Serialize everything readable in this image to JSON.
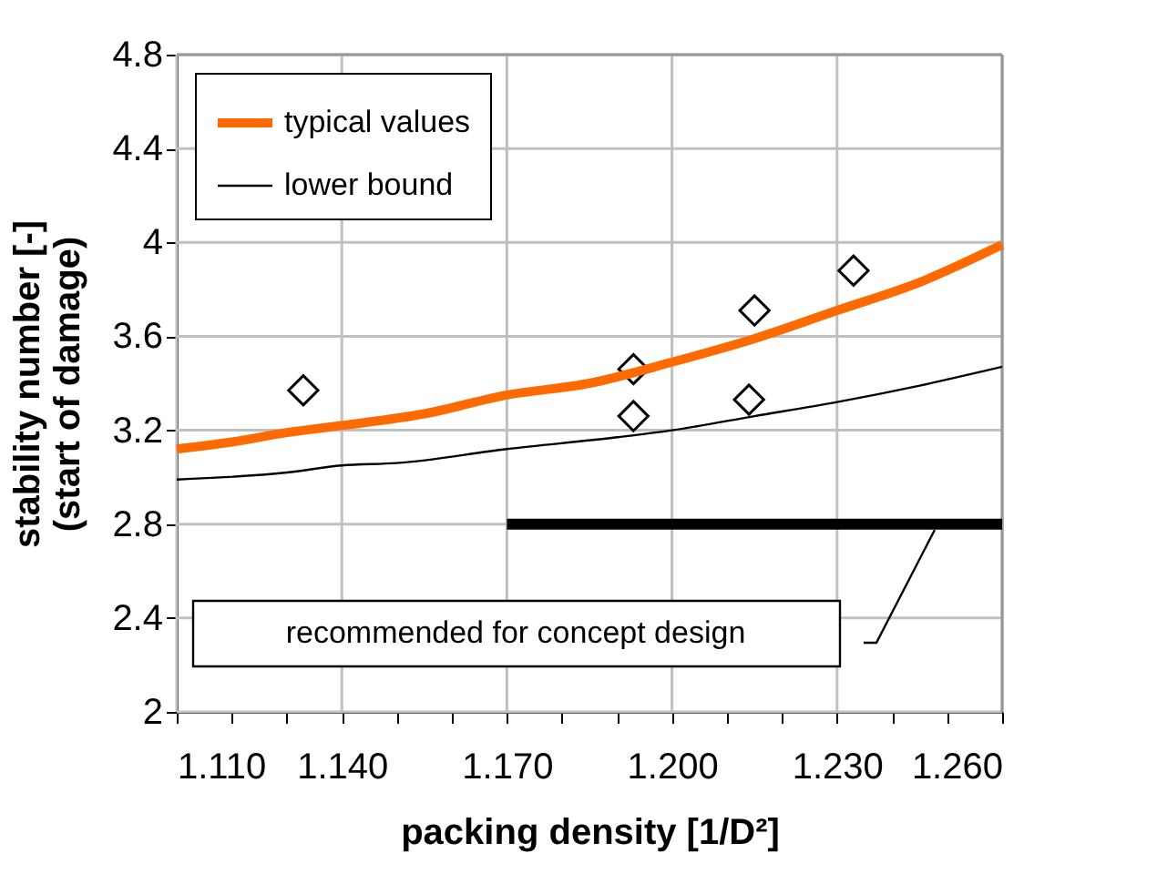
{
  "chart_data": {
    "type": "line",
    "xlabel": "packing density [1/D²]",
    "ylabel": "stability number [-]\n(start of damage)",
    "series": [
      {
        "type": "scatter",
        "color": "#000000",
        "marker": "diamond",
        "x": [
          1.133,
          1.193,
          1.193,
          1.214,
          1.215,
          1.233
        ],
        "values": [
          3.37,
          3.46,
          3.26,
          3.33,
          3.71,
          3.88
        ]
      },
      {
        "name": "typical values",
        "color": "#ff6a00",
        "x": [
          1.11,
          1.12,
          1.13,
          1.14,
          1.155,
          1.17,
          1.185,
          1.2,
          1.215,
          1.23,
          1.245,
          1.26
        ],
        "values": [
          3.12,
          3.15,
          3.19,
          3.22,
          3.27,
          3.35,
          3.4,
          3.49,
          3.59,
          3.71,
          3.83,
          3.99
        ]
      },
      {
        "name": "lower bound",
        "color": "#000000",
        "x": [
          1.11,
          1.13,
          1.14,
          1.15,
          1.17,
          1.19,
          1.2,
          1.215,
          1.23,
          1.245,
          1.26
        ],
        "values": [
          2.99,
          3.02,
          3.05,
          3.06,
          3.12,
          3.17,
          3.2,
          3.26,
          3.32,
          3.39,
          3.47
        ]
      },
      {
        "color": "#000000",
        "x": [
          1.17,
          1.26
        ],
        "values": [
          2.8,
          2.8
        ]
      }
    ],
    "annotations": [
      "recommended for concept design"
    ],
    "xlim": [
      1.11,
      1.26
    ],
    "xticks": [
      {
        "value": 1.11,
        "label": "1.110"
      },
      {
        "value": 1.12,
        "label": null
      },
      {
        "value": 1.13,
        "label": null
      },
      {
        "value": 1.14,
        "label": "1.140"
      },
      {
        "value": 1.15,
        "label": null
      },
      {
        "value": 1.16,
        "label": null
      },
      {
        "value": 1.17,
        "label": "1.170"
      },
      {
        "value": 1.18,
        "label": null
      },
      {
        "value": 1.19,
        "label": null
      },
      {
        "value": 1.2,
        "label": "1.200"
      },
      {
        "value": 1.21,
        "label": null
      },
      {
        "value": 1.22,
        "label": null
      },
      {
        "value": 1.23,
        "label": "1.230"
      },
      {
        "value": 1.24,
        "label": null
      },
      {
        "value": 1.25,
        "label": null
      },
      {
        "value": 1.26,
        "label": "1.260"
      }
    ],
    "ylim": [
      2,
      4.8
    ],
    "yticks": [
      2,
      2.4,
      2.8,
      3.2,
      3.6,
      4,
      4.4,
      4.8
    ],
    "grid": true,
    "legend": "top left"
  }
}
